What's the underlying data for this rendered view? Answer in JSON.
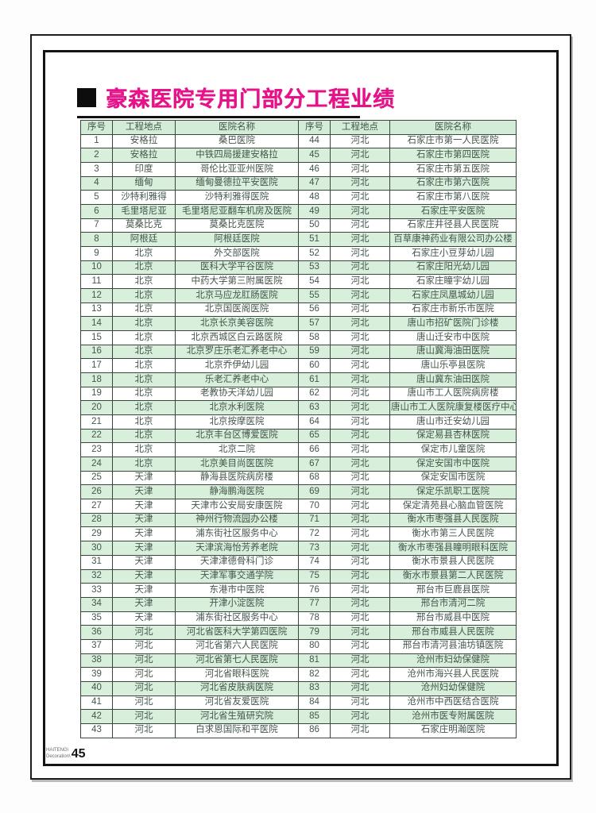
{
  "page": {
    "title": "豪森医院专用门部分工程业绩",
    "footer": {
      "logo_line1": "HAITENG\\",
      "logo_line2": "Decoration\\",
      "page_number": "45"
    }
  },
  "table": {
    "headers": [
      "序号",
      "工程地点",
      "医院名称",
      "序号",
      "工程地点",
      "医院名称"
    ],
    "rows": [
      [
        "1",
        "安格拉",
        "桑巴医院",
        "44",
        "河北",
        "石家庄市第一人民医院"
      ],
      [
        "2",
        "安格拉",
        "中铁四局援建安格拉",
        "45",
        "河北",
        "石家庄市第四医院"
      ],
      [
        "3",
        "印度",
        "哥伦比亚亚州医院",
        "46",
        "河北",
        "石家庄市第五医院"
      ],
      [
        "4",
        "缅甸",
        "缅甸曼德拉平安医院",
        "47",
        "河北",
        "石家庄市第六医院"
      ],
      [
        "5",
        "沙特利雅得",
        "沙特利雅得医院",
        "48",
        "河北",
        "石家庄市第八医院"
      ],
      [
        "6",
        "毛里塔尼亚",
        "毛里塔尼亚翻车机房及医院",
        "49",
        "河北",
        "石家庄平安医院"
      ],
      [
        "7",
        "莫桑比克",
        "莫桑比克医院",
        "50",
        "河北",
        "石家庄井径县人民医院"
      ],
      [
        "8",
        "阿根廷",
        "阿根廷医院",
        "51",
        "河北",
        "百草康神药业有限公司办公楼"
      ],
      [
        "9",
        "北京",
        "外交部医院",
        "52",
        "河北",
        "石家庄小豆芽幼儿园"
      ],
      [
        "10",
        "北京",
        "医科大学平谷医院",
        "53",
        "河北",
        "石家庄阳光幼儿园"
      ],
      [
        "11",
        "北京",
        "中药大学第三附属医院",
        "54",
        "河北",
        "石家庄瞳宇幼儿园"
      ],
      [
        "12",
        "北京",
        "北京马应龙肛肠医院",
        "55",
        "河北",
        "石家庄凤凰城幼儿园"
      ],
      [
        "13",
        "北京",
        "北京国医阁医院",
        "56",
        "河北",
        "石家庄市新乐市医院"
      ],
      [
        "14",
        "北京",
        "北京长京美容医院",
        "57",
        "河北",
        "唐山市招矿医院门诊楼"
      ],
      [
        "15",
        "北京",
        "北京西城区白云路医院",
        "58",
        "河北",
        "唐山迁安市中医院"
      ],
      [
        "16",
        "北京",
        "北京罗庄乐老汇养老中心",
        "59",
        "河北",
        "唐山冀海油田医院"
      ],
      [
        "17",
        "北京",
        "北京乔伊幼儿园",
        "60",
        "河北",
        "唐山乐亭县医院"
      ],
      [
        "18",
        "北京",
        "乐老汇养老中心",
        "61",
        "河北",
        "唐山冀东油田医院"
      ],
      [
        "19",
        "北京",
        "老教协天洋幼儿园",
        "62",
        "河北",
        "唐山市工人医院病房楼"
      ],
      [
        "20",
        "北京",
        "北京水利医院",
        "63",
        "河北",
        "唐山市工人医院康复楼医疗中心"
      ],
      [
        "21",
        "北京",
        "北京按摩医院",
        "64",
        "河北",
        "唐山市迁安幼儿园"
      ],
      [
        "22",
        "北京",
        "北京丰台区博爱医院",
        "65",
        "河北",
        "保定易县杏林医院"
      ],
      [
        "23",
        "北京",
        "北京二院",
        "66",
        "河北",
        "保定市儿童医院"
      ],
      [
        "24",
        "北京",
        "北京美目尚医医院",
        "67",
        "河北",
        "保定安国市中医院"
      ],
      [
        "25",
        "天津",
        "静海县医院病房楼",
        "68",
        "河北",
        "保定安国市医院"
      ],
      [
        "26",
        "天津",
        "静海鹏海医院",
        "69",
        "河北",
        "保定乐凯职工医院"
      ],
      [
        "27",
        "天津",
        "天津市公安局安康医院",
        "70",
        "河北",
        "保定清苑县心脑血管医院"
      ],
      [
        "28",
        "天津",
        "神州行物流园办公楼",
        "71",
        "河北",
        "衡水市枣强县人民医院"
      ],
      [
        "29",
        "天津",
        "浦东街社区服务中心",
        "72",
        "河北",
        "衡水市第三人民医院"
      ],
      [
        "30",
        "天津",
        "天津滨海怡芳养老院",
        "73",
        "河北",
        "衡水市枣强县瞳明眼科医院"
      ],
      [
        "31",
        "天津",
        "天津津德骨科门诊",
        "74",
        "河北",
        "衡水市景县人民医院"
      ],
      [
        "32",
        "天津",
        "天津军事交通学院",
        "75",
        "河北",
        "衡水市景县第二人民医院"
      ],
      [
        "33",
        "天津",
        "东港市中医院",
        "76",
        "河北",
        "邢台市巨鹿县医院"
      ],
      [
        "34",
        "天津",
        "开津小淀医院",
        "77",
        "河北",
        "邢台市清河二院"
      ],
      [
        "35",
        "天津",
        "浦东街社区服务中心",
        "78",
        "河北",
        "邢台市威县中医院"
      ],
      [
        "36",
        "河北",
        "河北省医科大学第四医院",
        "79",
        "河北",
        "邢台市威县人民医院"
      ],
      [
        "37",
        "河北",
        "河北省第六人民医院",
        "80",
        "河北",
        "邢台市清河县油坊镇医院"
      ],
      [
        "38",
        "河北",
        "河北省第七人民医院",
        "81",
        "河北",
        "沧州市妇幼保健院"
      ],
      [
        "39",
        "河北",
        "河北省眼科医院",
        "82",
        "河北",
        "沧州市海兴县人民医院"
      ],
      [
        "40",
        "河北",
        "河北省皮肤病医院",
        "83",
        "河北",
        "沧州妇幼保健院"
      ],
      [
        "41",
        "河北",
        "河北省友爱医院",
        "84",
        "河北",
        "沧州市中西医结合医院"
      ],
      [
        "42",
        "河北",
        "河北省生殖研究院",
        "85",
        "河北",
        "沧州市医专附属医院"
      ],
      [
        "43",
        "河北",
        "白求恩国际和平医院",
        "86",
        "河北",
        "石家庄明瀚医院"
      ]
    ]
  },
  "colors": {
    "title_magenta": "#e6128a",
    "row_green": "#d8efdc",
    "table_border": "#39463c",
    "cell_text": "#44564c"
  }
}
